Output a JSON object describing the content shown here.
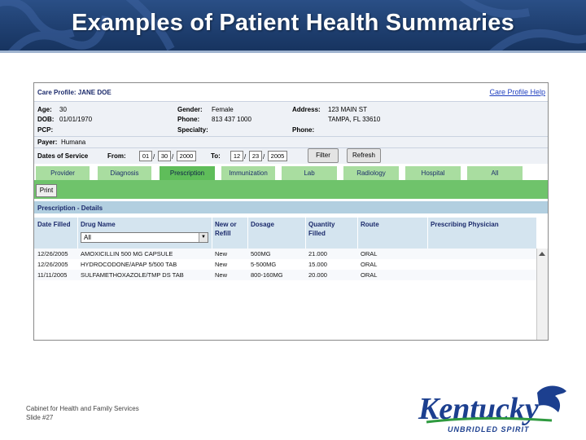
{
  "slide": {
    "title": "Examples of Patient Health Summaries",
    "footer_line1": "Cabinet for Health and Family Services",
    "footer_line2": "Slide #27"
  },
  "logo": {
    "name": "Kentucky",
    "tagline": "UNBRIDLED SPIRIT",
    "colors": {
      "wordmark": "#1c3f8f",
      "tagline": "#1c3f8f",
      "horse": "#1c3f8f",
      "swoosh": "#2f9a3f"
    }
  },
  "app": {
    "care_profile": "Care Profile: JANE DOE",
    "help_link": "Care Profile Help",
    "fields": {
      "age_label": "Age:",
      "age": "30",
      "dob_label": "DOB:",
      "dob": "01/01/1970",
      "pcp_label": "PCP:",
      "pcp": "",
      "payer_label": "Payer:",
      "payer": "Humana",
      "gender_label": "Gender:",
      "gender": "Female",
      "phone_label": "Phone:",
      "phone": "813 437 1000",
      "specialty_label": "Specialty:",
      "specialty": "",
      "address_label": "Address:",
      "address1": "123 MAIN ST",
      "address2": "TAMPA, FL 33610",
      "phone2_label": "Phone:",
      "phone2": ""
    },
    "dates": {
      "label": "Dates of Service",
      "from_label": "From:",
      "from_month": "01",
      "from_day": "30",
      "from_year": "2000",
      "to_label": "To:",
      "to_month": "12",
      "to_day": "23",
      "to_year": "2005",
      "sep": "/",
      "filter_btn": "Filter",
      "refresh_btn": "Refresh"
    },
    "tabs": [
      "Provider",
      "Diagnosis",
      "Prescription",
      "Immunization",
      "Lab",
      "Radiology",
      "Hospital",
      "All"
    ],
    "active_tab": "Prescription",
    "print_btn": "Print",
    "details_title": "Prescription - Details",
    "columns": {
      "date": "Date Filled",
      "drug": "Drug Name",
      "refill": "New or Refill",
      "dosage": "Dosage",
      "qty": "Quantity Filled",
      "route": "Route",
      "physician": "Prescribing Physician"
    },
    "drug_filter": "All",
    "rows": [
      {
        "date": "12/26/2005",
        "drug": "AMOXICILLIN 500 MG CAPSULE",
        "refill": "New",
        "dosage": "500MG",
        "qty": "21.000",
        "route": "ORAL",
        "physician": ""
      },
      {
        "date": "12/26/2005",
        "drug": "HYDROCODONE/APAP 5/500 TAB",
        "refill": "New",
        "dosage": "5-500MG",
        "qty": "15.000",
        "route": "ORAL",
        "physician": ""
      },
      {
        "date": "11/11/2005",
        "drug": "SULFAMETHOXAZOLE/TMP DS TAB",
        "refill": "New",
        "dosage": "800-160MG",
        "qty": "20.000",
        "route": "ORAL",
        "physician": ""
      }
    ]
  }
}
